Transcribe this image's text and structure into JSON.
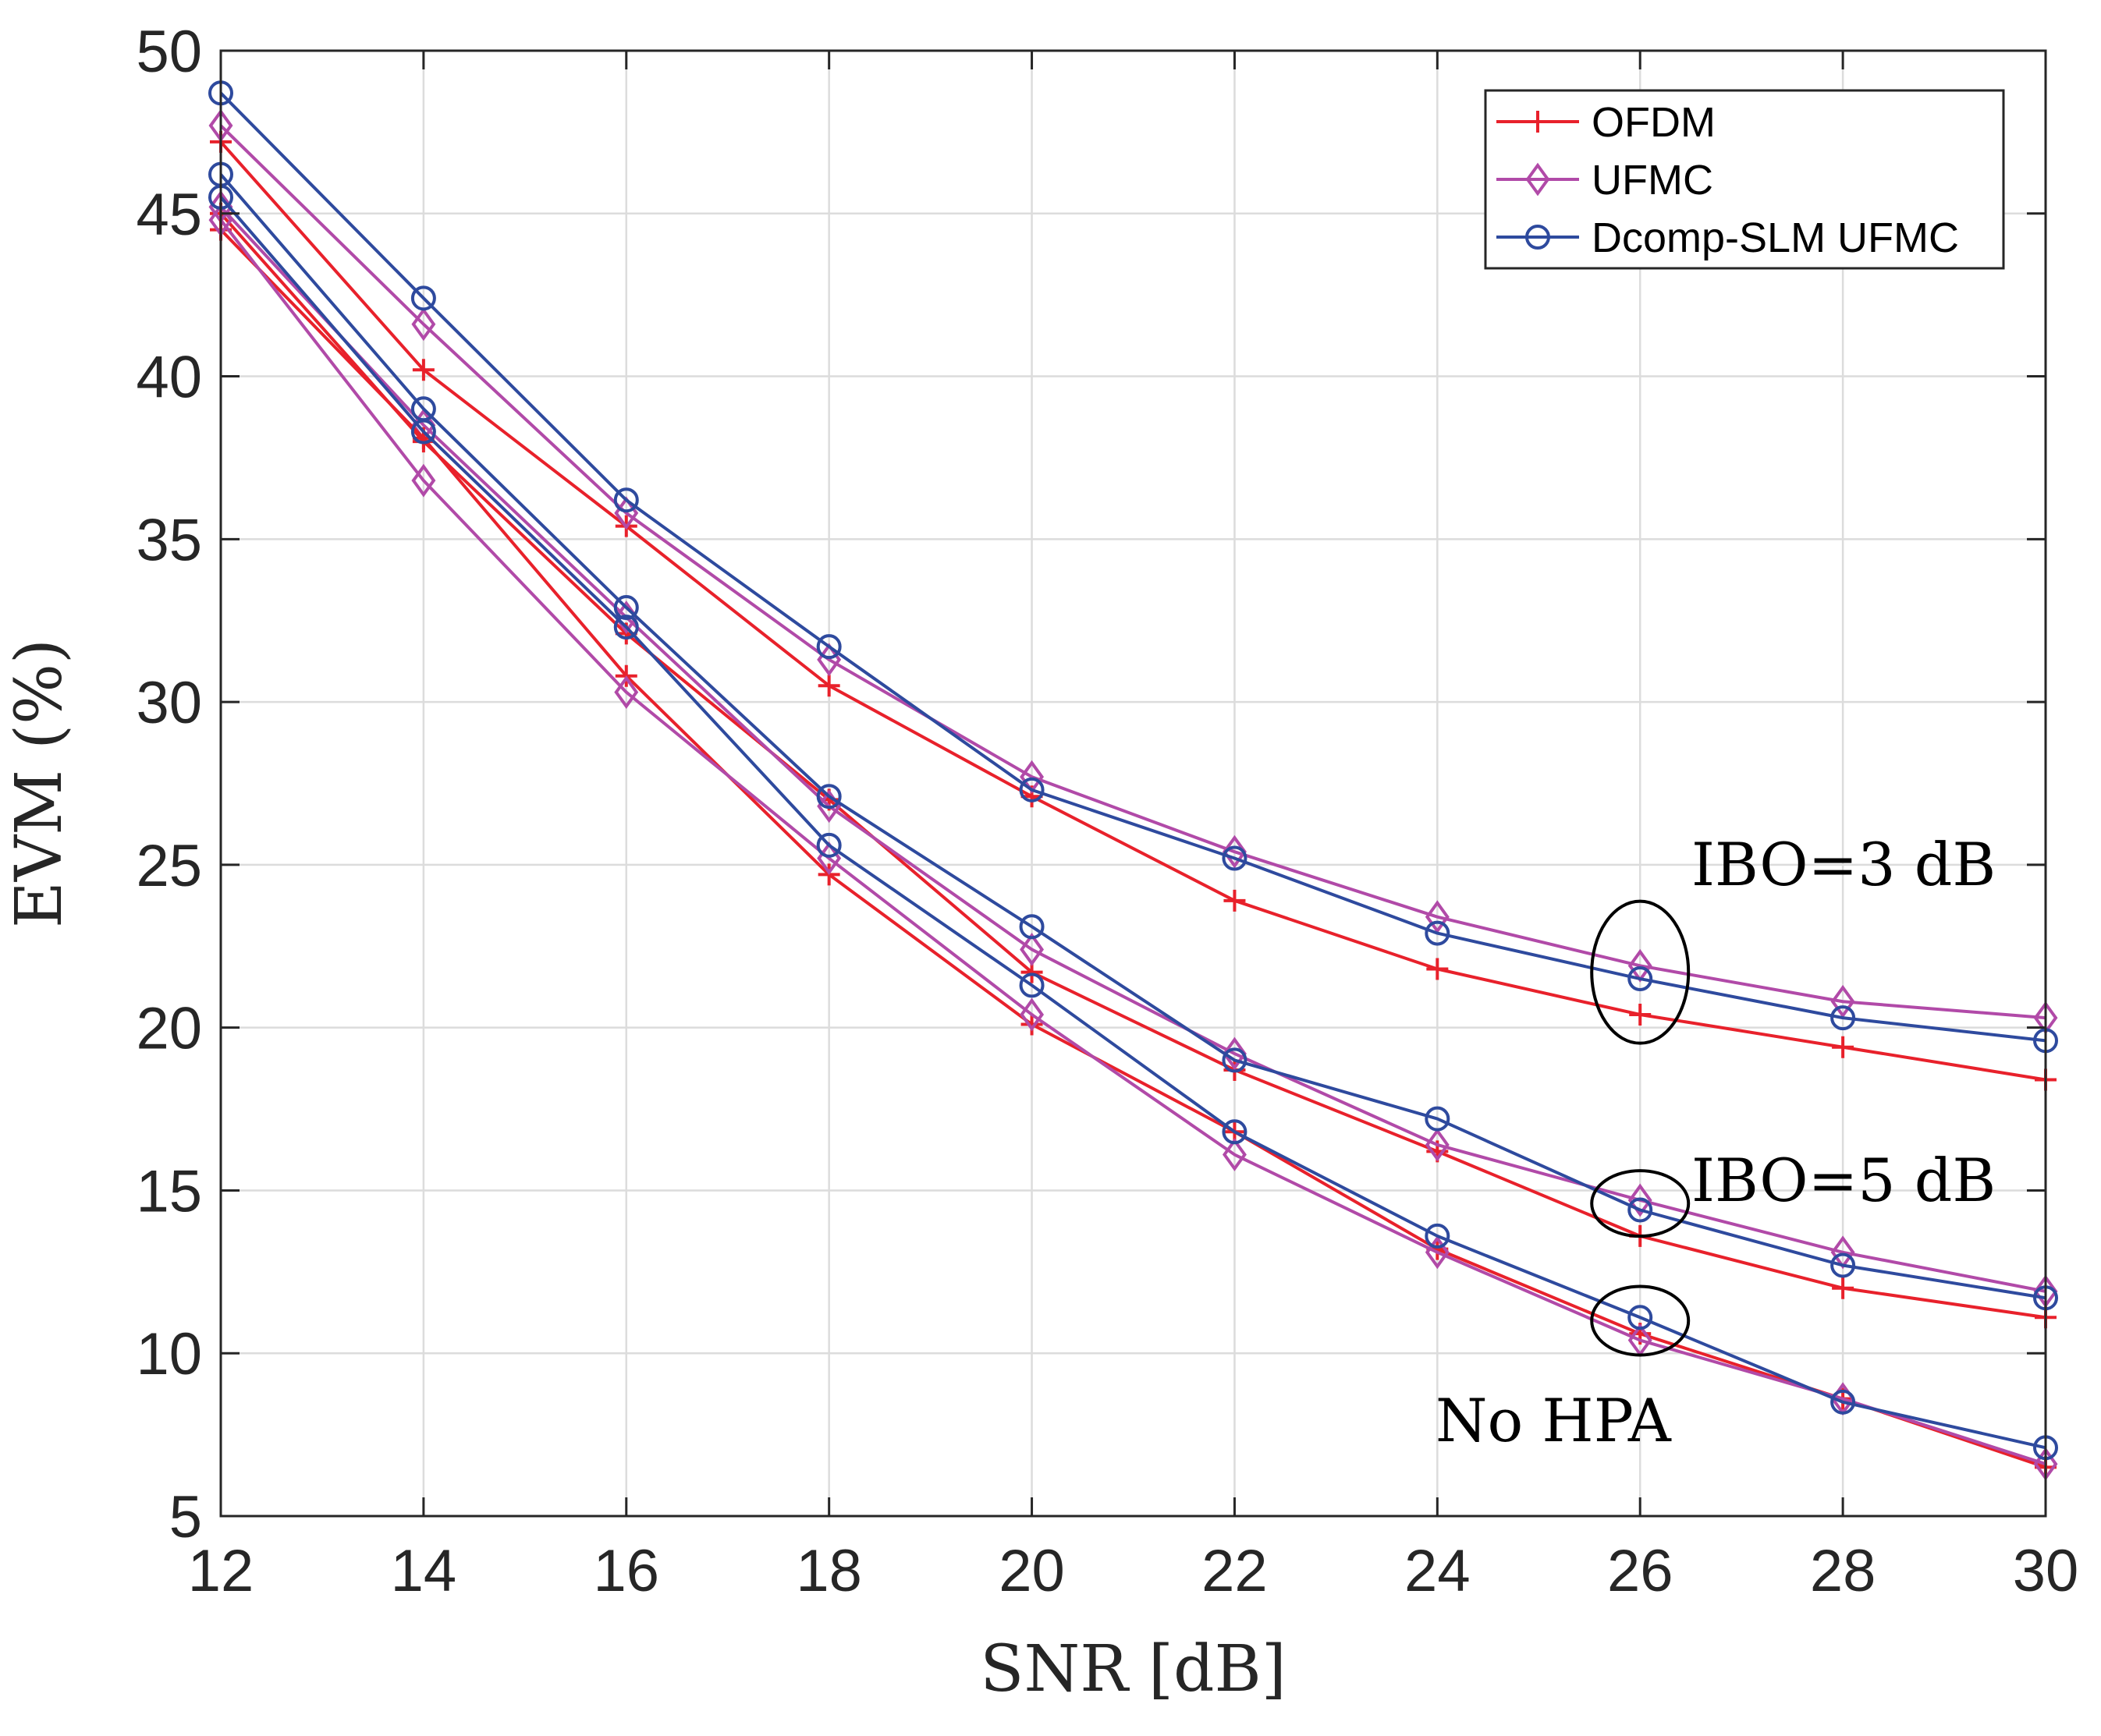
{
  "chart_data": {
    "type": "line",
    "title": "",
    "xlabel": "SNR [dB]",
    "ylabel": "EVM (%)",
    "xlim": [
      12,
      30
    ],
    "ylim": [
      5,
      50
    ],
    "xticks": [
      "12",
      "14",
      "16",
      "18",
      "20",
      "22",
      "24",
      "26",
      "28",
      "30"
    ],
    "yticks": [
      "5",
      "10",
      "15",
      "20",
      "25",
      "30",
      "35",
      "40",
      "45",
      "50"
    ],
    "grid": true,
    "legend_position": "top-right",
    "legend": [
      {
        "name": "OFDM",
        "color": "#e8212b",
        "marker": "plus"
      },
      {
        "name": "UFMC",
        "color": "#b14aa8",
        "marker": "diamond"
      },
      {
        "name": "Dcomp-SLM UFMC",
        "color": "#2e4a9e",
        "marker": "circle"
      }
    ],
    "x": [
      12,
      14,
      16,
      18,
      20,
      22,
      24,
      26,
      28,
      30
    ],
    "series": [
      {
        "name": "OFDM",
        "group": "IBO=3 dB",
        "color": "#e8212b",
        "marker": "plus",
        "values": [
          47.2,
          40.2,
          35.4,
          30.5,
          27.1,
          23.9,
          21.8,
          20.4,
          19.4,
          18.4
        ]
      },
      {
        "name": "UFMC",
        "group": "IBO=3 dB",
        "color": "#b14aa8",
        "marker": "diamond",
        "values": [
          47.7,
          41.6,
          35.8,
          31.3,
          27.7,
          25.4,
          23.4,
          21.9,
          20.8,
          20.3
        ]
      },
      {
        "name": "Dcomp-SLM UFMC",
        "group": "IBO=3 dB",
        "color": "#2e4a9e",
        "marker": "circle",
        "values": [
          48.7,
          42.4,
          36.2,
          31.7,
          27.3,
          25.2,
          22.9,
          21.5,
          20.3,
          19.6
        ]
      },
      {
        "name": "OFDM",
        "group": "IBO=5 dB",
        "color": "#e8212b",
        "marker": "plus",
        "values": [
          45.0,
          38.0,
          32.1,
          27.0,
          21.7,
          18.7,
          16.2,
          13.6,
          12.0,
          11.1
        ]
      },
      {
        "name": "UFMC",
        "group": "IBO=5 dB",
        "color": "#b14aa8",
        "marker": "diamond",
        "values": [
          45.2,
          38.5,
          32.6,
          26.8,
          22.4,
          19.2,
          16.4,
          14.7,
          13.1,
          11.9
        ]
      },
      {
        "name": "Dcomp-SLM UFMC",
        "group": "IBO=5 dB",
        "color": "#2e4a9e",
        "marker": "circle",
        "values": [
          46.2,
          39.0,
          32.9,
          27.1,
          23.1,
          19.0,
          17.2,
          14.4,
          12.7,
          11.7
        ]
      },
      {
        "name": "OFDM",
        "group": "No HPA",
        "color": "#e8212b",
        "marker": "plus",
        "values": [
          44.5,
          38.1,
          30.8,
          24.7,
          20.1,
          16.8,
          13.2,
          10.6,
          8.6,
          6.5
        ]
      },
      {
        "name": "UFMC",
        "group": "No HPA",
        "color": "#b14aa8",
        "marker": "diamond",
        "values": [
          44.8,
          36.8,
          30.3,
          25.2,
          20.4,
          16.1,
          13.1,
          10.4,
          8.6,
          6.6
        ]
      },
      {
        "name": "Dcomp-SLM UFMC",
        "group": "No HPA",
        "color": "#2e4a9e",
        "marker": "circle",
        "values": [
          45.5,
          38.3,
          32.3,
          25.6,
          21.3,
          16.8,
          13.6,
          11.1,
          8.5,
          7.1
        ]
      }
    ],
    "annotations": [
      {
        "text": "IBO=3 dB",
        "ellipse_center": [
          26,
          21.7
        ]
      },
      {
        "text": "IBO=5 dB",
        "ellipse_center": [
          26,
          14.6
        ]
      },
      {
        "text": "No HPA",
        "ellipse_center": [
          26,
          11.0
        ]
      }
    ]
  }
}
